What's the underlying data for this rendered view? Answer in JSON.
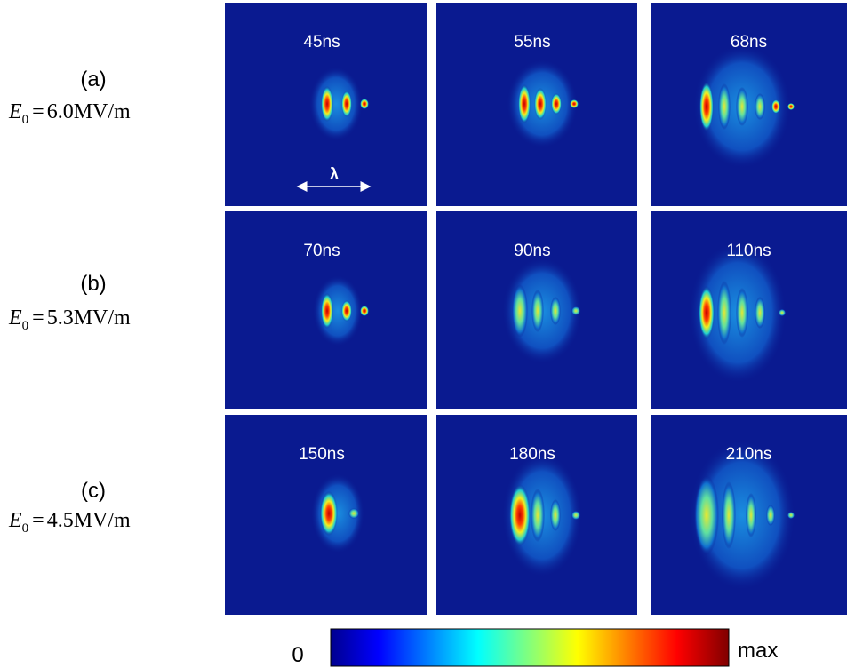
{
  "rows": [
    {
      "label": "(a)",
      "symbol": "E",
      "subscript": "0",
      "relation": "=",
      "value": "6.0MV/m",
      "times": [
        "45ns",
        "55ns",
        "68ns"
      ]
    },
    {
      "label": "(b)",
      "symbol": "E",
      "subscript": "0",
      "relation": "=",
      "value": "5.3MV/m",
      "times": [
        "70ns",
        "90ns",
        "110ns"
      ]
    },
    {
      "label": "(c)",
      "symbol": "E",
      "subscript": "0",
      "relation": "=",
      "value": "4.5MV/m",
      "times": [
        "150ns",
        "180ns",
        "210ns"
      ]
    }
  ],
  "scale_annotation": "λ",
  "colorbar": {
    "min_label": "0",
    "max_label": "max"
  }
}
